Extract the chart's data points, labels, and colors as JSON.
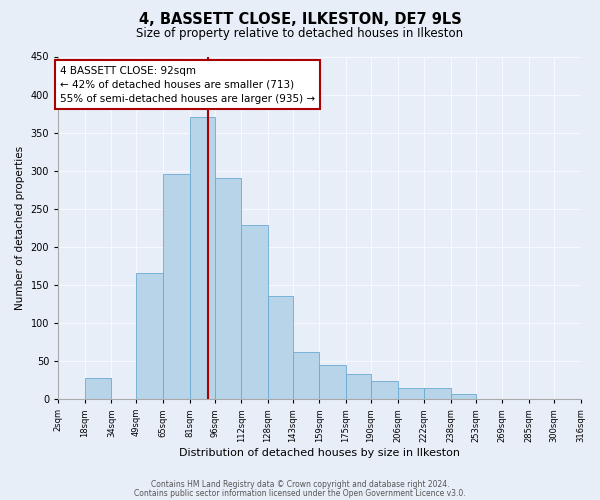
{
  "title": "4, BASSETT CLOSE, ILKESTON, DE7 9LS",
  "subtitle": "Size of property relative to detached houses in Ilkeston",
  "xlabel": "Distribution of detached houses by size in Ilkeston",
  "ylabel": "Number of detached properties",
  "bar_color": "#b8d4e8",
  "bar_edge_color": "#6aaad4",
  "background_color": "#e8eef8",
  "grid_color": "#f8f8ff",
  "annotation_box_color": "#aa0000",
  "vline_color": "#aa0000",
  "vline_x": 92,
  "annotation_title": "4 BASSETT CLOSE: 92sqm",
  "annotation_line1": "← 42% of detached houses are smaller (713)",
  "annotation_line2": "55% of semi-detached houses are larger (935) →",
  "footer1": "Contains HM Land Registry data © Crown copyright and database right 2024.",
  "footer2": "Contains public sector information licensed under the Open Government Licence v3.0.",
  "bin_edges": [
    2,
    18,
    34,
    49,
    65,
    81,
    96,
    112,
    128,
    143,
    159,
    175,
    190,
    206,
    222,
    238,
    253,
    269,
    285,
    300,
    316
  ],
  "bin_labels": [
    "2sqm",
    "18sqm",
    "34sqm",
    "49sqm",
    "65sqm",
    "81sqm",
    "96sqm",
    "112sqm",
    "128sqm",
    "143sqm",
    "159sqm",
    "175sqm",
    "190sqm",
    "206sqm",
    "222sqm",
    "238sqm",
    "253sqm",
    "269sqm",
    "285sqm",
    "300sqm",
    "316sqm"
  ],
  "counts": [
    0,
    28,
    0,
    165,
    295,
    370,
    290,
    228,
    135,
    62,
    45,
    33,
    24,
    14,
    15,
    6,
    0,
    0,
    0,
    0
  ],
  "ylim": [
    0,
    450
  ],
  "yticks": [
    0,
    50,
    100,
    150,
    200,
    250,
    300,
    350,
    400,
    450
  ]
}
